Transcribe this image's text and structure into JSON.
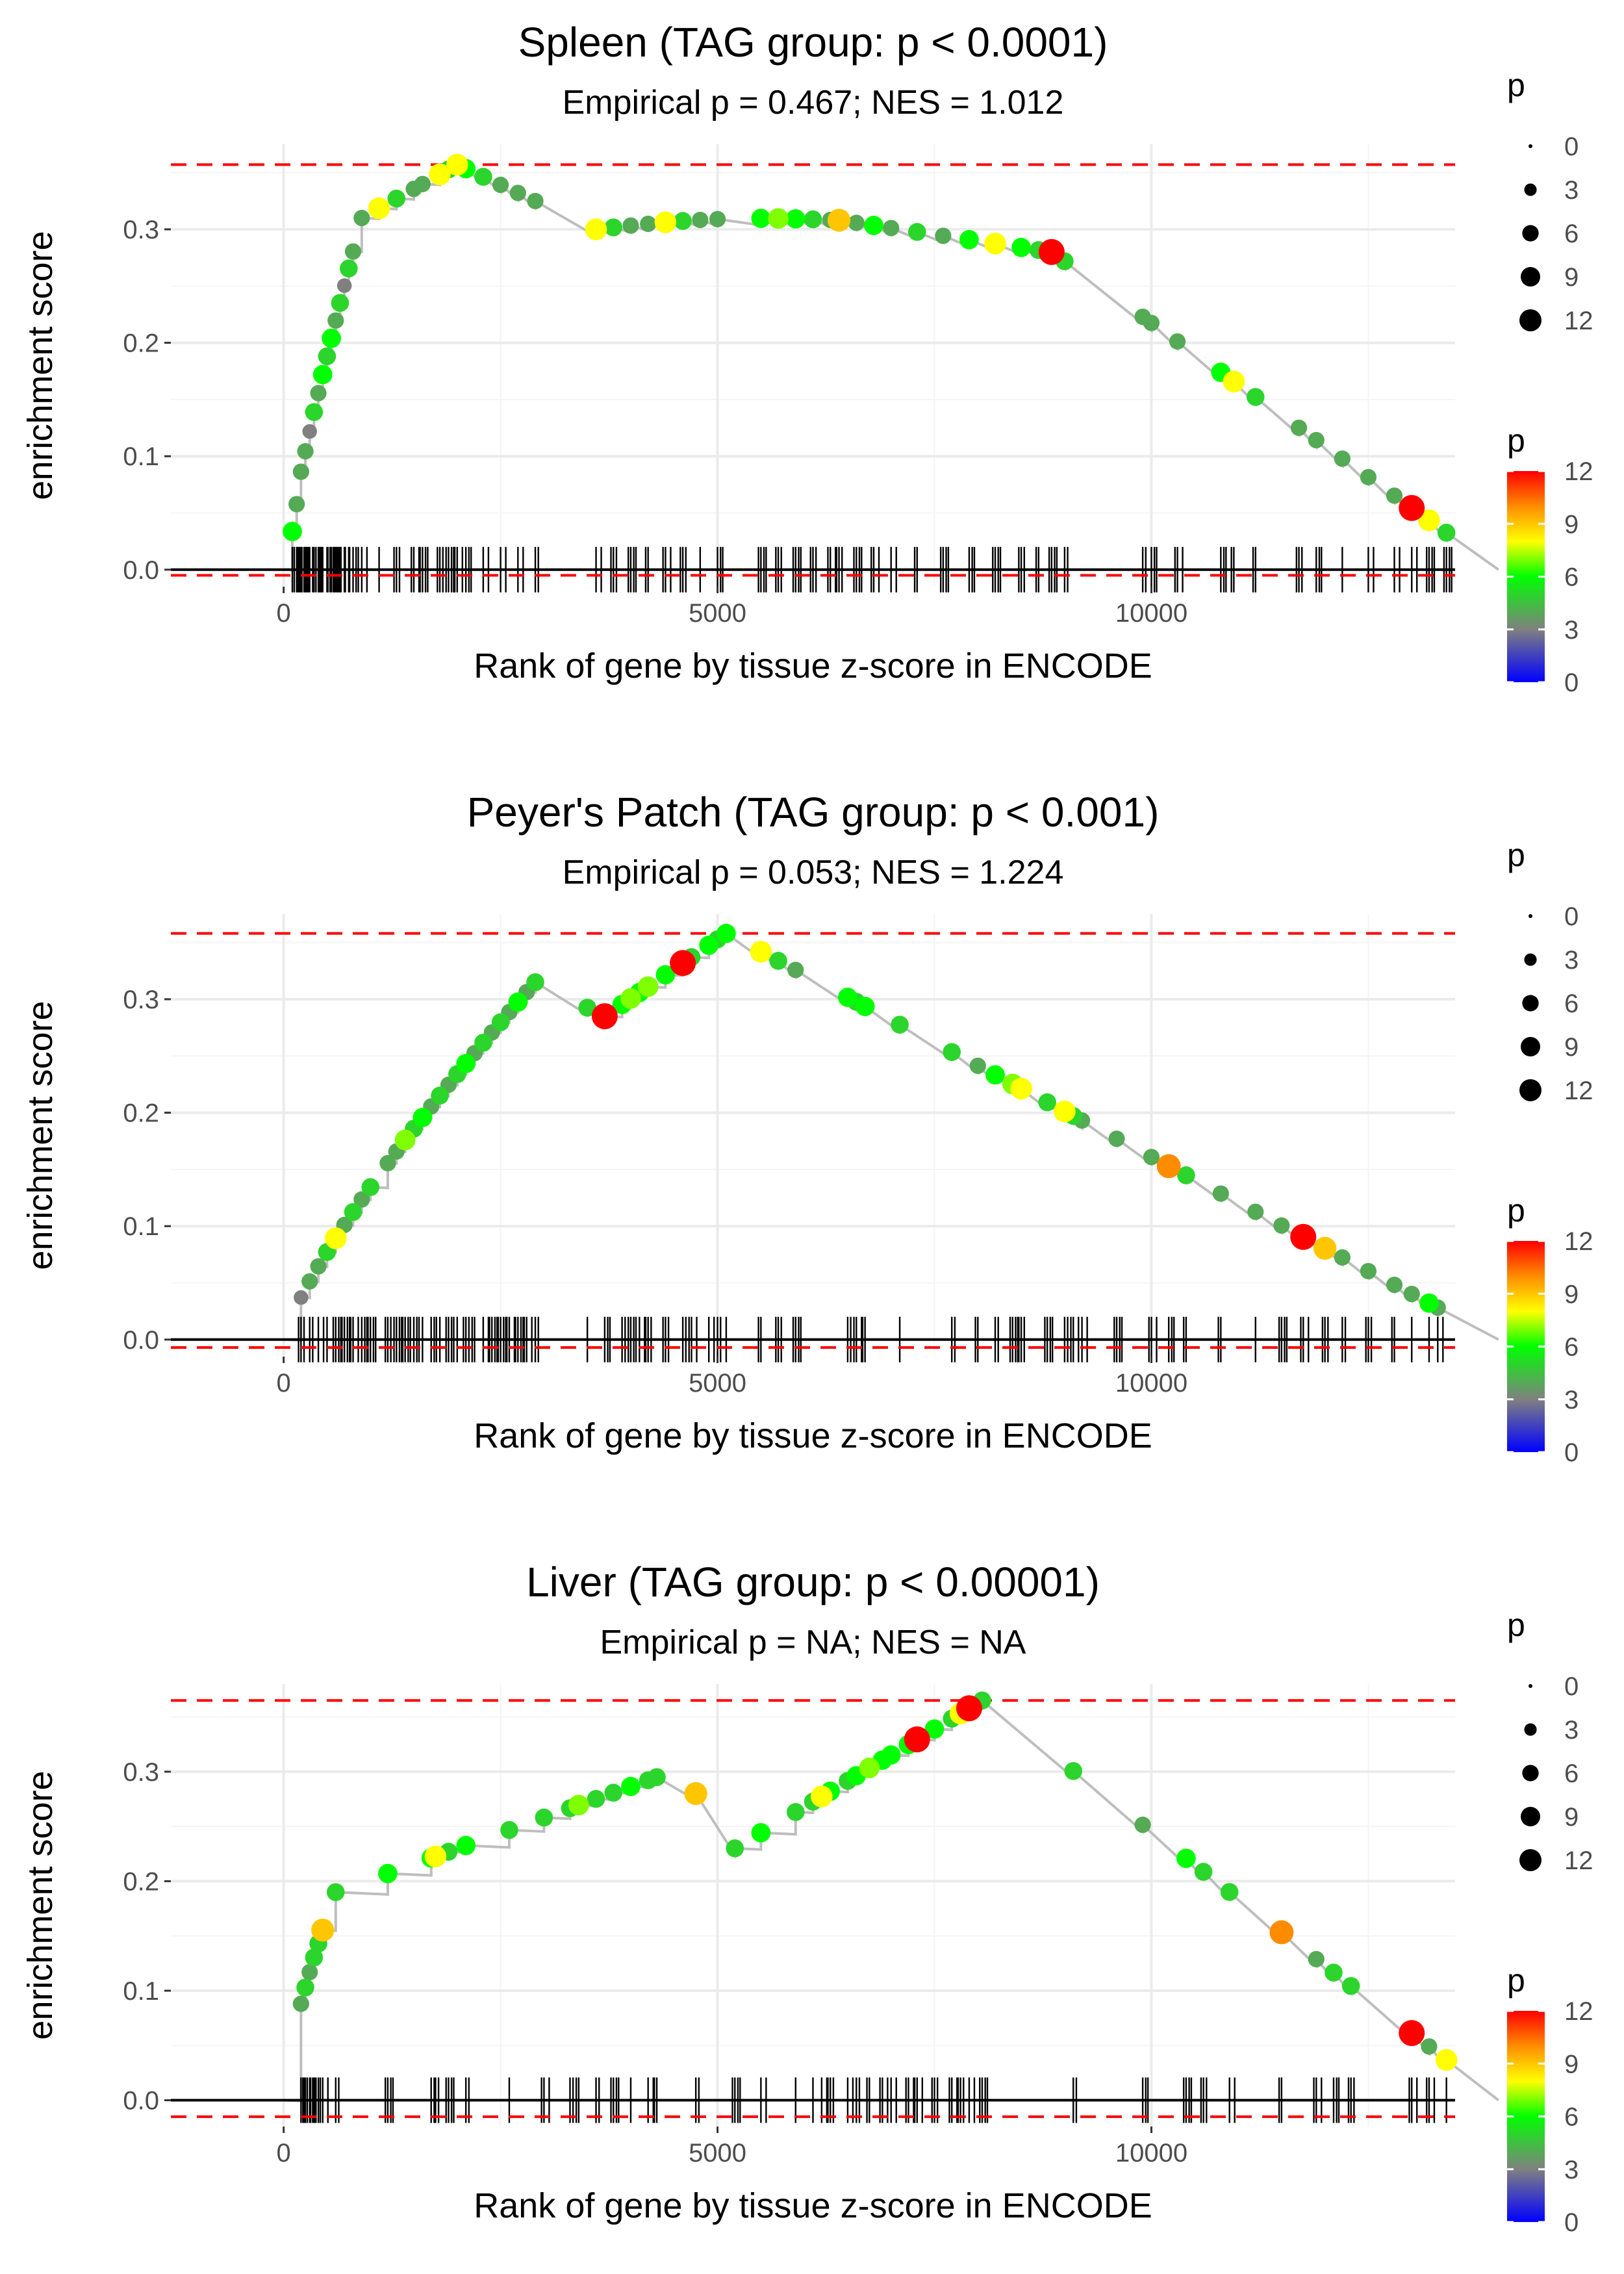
{
  "figure_colors": {
    "grid": "#ebebeb",
    "reference_line": "#ff0000",
    "running_line": "#bebebe",
    "baseline": "#000000",
    "rug": "#000000",
    "gradient_stops": [
      "#0000ff",
      "#808080",
      "#00ff00",
      "#ffff00",
      "#ff8c00",
      "#ff0000"
    ]
  },
  "chart_data": [
    {
      "type": "line",
      "title": "Spleen (TAG group: p < 0.0001)",
      "subtitle": "Empirical p = 0.467; NES = 1.012",
      "xlabel": "Rank of gene by tissue z-score in ENCODE",
      "ylabel": "enrichment score",
      "xlim": [
        -1300,
        13500
      ],
      "ylim": [
        -0.015,
        0.375
      ],
      "x_ticks": [
        0,
        5000,
        10000
      ],
      "x_tick_labels": [
        "0",
        "5000",
        "10000"
      ],
      "y_ticks": [
        0.0,
        0.1,
        0.2,
        0.3
      ],
      "y_tick_labels": [
        "0.0",
        "0.1",
        "0.2",
        "0.3"
      ],
      "max_es": 0.357,
      "min_es": -0.005,
      "n_genes": 14000,
      "legend_size": {
        "title": "p",
        "values": [
          0,
          3,
          6,
          9,
          12
        ],
        "labels": [
          "0",
          "3",
          "6",
          "9",
          "12"
        ]
      },
      "legend_color": {
        "title": "p",
        "range": [
          0,
          12
        ],
        "ticks": [
          0,
          3,
          6,
          9,
          12
        ],
        "labels": [
          "0",
          "3",
          "6",
          "9",
          "12"
        ]
      },
      "hits": [
        {
          "x": 100,
          "p": 6
        },
        {
          "x": 150,
          "p": 4
        },
        {
          "x": 200,
          "p": 4
        },
        {
          "x": 250,
          "p": 4
        },
        {
          "x": 300,
          "p": 3
        },
        {
          "x": 350,
          "p": 5
        },
        {
          "x": 400,
          "p": 4
        },
        {
          "x": 450,
          "p": 6
        },
        {
          "x": 500,
          "p": 5
        },
        {
          "x": 550,
          "p": 6
        },
        {
          "x": 600,
          "p": 4
        },
        {
          "x": 650,
          "p": 5
        },
        {
          "x": 700,
          "p": 3
        },
        {
          "x": 750,
          "p": 5
        },
        {
          "x": 800,
          "p": 4
        },
        {
          "x": 900,
          "p": 4
        },
        {
          "x": 1100,
          "p": 8
        },
        {
          "x": 1300,
          "p": 5
        },
        {
          "x": 1500,
          "p": 4
        },
        {
          "x": 1600,
          "p": 4
        },
        {
          "x": 1800,
          "p": 8
        },
        {
          "x": 1900,
          "p": 5
        },
        {
          "x": 2000,
          "p": 8
        },
        {
          "x": 2100,
          "p": 6
        },
        {
          "x": 2300,
          "p": 5
        },
        {
          "x": 2500,
          "p": 4
        },
        {
          "x": 2700,
          "p": 4
        },
        {
          "x": 2900,
          "p": 4
        },
        {
          "x": 3600,
          "p": 8
        },
        {
          "x": 3800,
          "p": 5
        },
        {
          "x": 4000,
          "p": 4
        },
        {
          "x": 4200,
          "p": 4
        },
        {
          "x": 4400,
          "p": 8
        },
        {
          "x": 4600,
          "p": 5
        },
        {
          "x": 4800,
          "p": 4
        },
        {
          "x": 5000,
          "p": 4
        },
        {
          "x": 5500,
          "p": 6
        },
        {
          "x": 5700,
          "p": 7
        },
        {
          "x": 5900,
          "p": 6
        },
        {
          "x": 6100,
          "p": 5
        },
        {
          "x": 6300,
          "p": 4
        },
        {
          "x": 6400,
          "p": 9
        },
        {
          "x": 6600,
          "p": 4
        },
        {
          "x": 6800,
          "p": 6
        },
        {
          "x": 7000,
          "p": 4
        },
        {
          "x": 7300,
          "p": 5
        },
        {
          "x": 7600,
          "p": 4
        },
        {
          "x": 7900,
          "p": 6
        },
        {
          "x": 8200,
          "p": 8
        },
        {
          "x": 8500,
          "p": 6
        },
        {
          "x": 8700,
          "p": 5
        },
        {
          "x": 8850,
          "p": 12
        },
        {
          "x": 9000,
          "p": 5
        },
        {
          "x": 9900,
          "p": 4
        },
        {
          "x": 10000,
          "p": 4
        },
        {
          "x": 10300,
          "p": 4
        },
        {
          "x": 10800,
          "p": 6
        },
        {
          "x": 10950,
          "p": 8
        },
        {
          "x": 11200,
          "p": 5
        },
        {
          "x": 11700,
          "p": 4
        },
        {
          "x": 11900,
          "p": 4
        },
        {
          "x": 12200,
          "p": 4
        },
        {
          "x": 12500,
          "p": 4
        },
        {
          "x": 12800,
          "p": 4
        },
        {
          "x": 13000,
          "p": 12
        },
        {
          "x": 13200,
          "p": 8
        },
        {
          "x": 13400,
          "p": 5
        }
      ]
    },
    {
      "type": "line",
      "title": "Peyer's Patch (TAG group: p < 0.001)",
      "subtitle": "Empirical p = 0.053; NES = 1.224",
      "xlabel": "Rank of gene by tissue z-score in ENCODE",
      "ylabel": "enrichment score",
      "xlim": [
        -1300,
        13500
      ],
      "ylim": [
        -0.015,
        0.375
      ],
      "x_ticks": [
        0,
        5000,
        10000
      ],
      "x_tick_labels": [
        "0",
        "5000",
        "10000"
      ],
      "y_ticks": [
        0.0,
        0.1,
        0.2,
        0.3
      ],
      "y_tick_labels": [
        "0.0",
        "0.1",
        "0.2",
        "0.3"
      ],
      "max_es": 0.358,
      "min_es": -0.007,
      "n_genes": 14000,
      "legend_size": {
        "title": "p",
        "values": [
          0,
          3,
          6,
          9,
          12
        ],
        "labels": [
          "0",
          "3",
          "6",
          "9",
          "12"
        ]
      },
      "legend_color": {
        "title": "p",
        "range": [
          0,
          12
        ],
        "ticks": [
          0,
          3,
          6,
          9,
          12
        ],
        "labels": [
          "0",
          "3",
          "6",
          "9",
          "12"
        ]
      },
      "hits": [
        {
          "x": 200,
          "p": 3
        },
        {
          "x": 300,
          "p": 4
        },
        {
          "x": 400,
          "p": 4
        },
        {
          "x": 500,
          "p": 5
        },
        {
          "x": 600,
          "p": 8
        },
        {
          "x": 700,
          "p": 4
        },
        {
          "x": 800,
          "p": 5
        },
        {
          "x": 900,
          "p": 4
        },
        {
          "x": 1000,
          "p": 5
        },
        {
          "x": 1200,
          "p": 4
        },
        {
          "x": 1300,
          "p": 4
        },
        {
          "x": 1400,
          "p": 7
        },
        {
          "x": 1500,
          "p": 5
        },
        {
          "x": 1600,
          "p": 6
        },
        {
          "x": 1700,
          "p": 4
        },
        {
          "x": 1800,
          "p": 5
        },
        {
          "x": 1900,
          "p": 4
        },
        {
          "x": 2000,
          "p": 5
        },
        {
          "x": 2100,
          "p": 6
        },
        {
          "x": 2200,
          "p": 4
        },
        {
          "x": 2300,
          "p": 5
        },
        {
          "x": 2400,
          "p": 4
        },
        {
          "x": 2500,
          "p": 5
        },
        {
          "x": 2600,
          "p": 4
        },
        {
          "x": 2700,
          "p": 6
        },
        {
          "x": 2800,
          "p": 4
        },
        {
          "x": 2900,
          "p": 5
        },
        {
          "x": 3500,
          "p": 5
        },
        {
          "x": 3700,
          "p": 12
        },
        {
          "x": 3900,
          "p": 6
        },
        {
          "x": 4000,
          "p": 7
        },
        {
          "x": 4100,
          "p": 6
        },
        {
          "x": 4200,
          "p": 7
        },
        {
          "x": 4400,
          "p": 6
        },
        {
          "x": 4600,
          "p": 12
        },
        {
          "x": 4700,
          "p": 5
        },
        {
          "x": 4900,
          "p": 6
        },
        {
          "x": 5000,
          "p": 5
        },
        {
          "x": 5100,
          "p": 6
        },
        {
          "x": 5500,
          "p": 8
        },
        {
          "x": 5700,
          "p": 5
        },
        {
          "x": 5900,
          "p": 4
        },
        {
          "x": 6500,
          "p": 6
        },
        {
          "x": 6600,
          "p": 5
        },
        {
          "x": 6700,
          "p": 6
        },
        {
          "x": 7100,
          "p": 5
        },
        {
          "x": 7700,
          "p": 5
        },
        {
          "x": 8000,
          "p": 4
        },
        {
          "x": 8200,
          "p": 6
        },
        {
          "x": 8400,
          "p": 7
        },
        {
          "x": 8500,
          "p": 8
        },
        {
          "x": 8800,
          "p": 5
        },
        {
          "x": 9000,
          "p": 8
        },
        {
          "x": 9100,
          "p": 5
        },
        {
          "x": 9200,
          "p": 4
        },
        {
          "x": 9600,
          "p": 4
        },
        {
          "x": 10000,
          "p": 4
        },
        {
          "x": 10200,
          "p": 10
        },
        {
          "x": 10400,
          "p": 5
        },
        {
          "x": 10800,
          "p": 4
        },
        {
          "x": 11200,
          "p": 4
        },
        {
          "x": 11500,
          "p": 4
        },
        {
          "x": 11750,
          "p": 12
        },
        {
          "x": 12000,
          "p": 9
        },
        {
          "x": 12200,
          "p": 4
        },
        {
          "x": 12500,
          "p": 4
        },
        {
          "x": 12800,
          "p": 4
        },
        {
          "x": 13000,
          "p": 4
        },
        {
          "x": 13200,
          "p": 6
        },
        {
          "x": 13300,
          "p": 4
        }
      ]
    },
    {
      "type": "line",
      "title": "Liver (TAG group: p < 0.00001)",
      "subtitle": "Empirical p = NA; NES = NA",
      "xlabel": "Rank of gene by tissue z-score in ENCODE",
      "ylabel": "enrichment score",
      "xlim": [
        -1300,
        13500
      ],
      "ylim": [
        -0.024,
        0.38
      ],
      "x_ticks": [
        0,
        5000,
        10000
      ],
      "x_tick_labels": [
        "0",
        "5000",
        "10000"
      ],
      "y_ticks": [
        0.0,
        0.1,
        0.2,
        0.3
      ],
      "y_tick_labels": [
        "0.0",
        "0.1",
        "0.2",
        "0.3"
      ],
      "max_es": 0.365,
      "min_es": -0.015,
      "n_genes": 14000,
      "legend_size": {
        "title": "p",
        "values": [
          0,
          3,
          6,
          9,
          12
        ],
        "labels": [
          "0",
          "3",
          "6",
          "9",
          "12"
        ]
      },
      "legend_color": {
        "title": "p",
        "range": [
          0,
          12
        ],
        "ticks": [
          0,
          3,
          6,
          9,
          12
        ],
        "labels": [
          "0",
          "3",
          "6",
          "9",
          "12"
        ]
      },
      "hits": [
        {
          "x": 200,
          "p": 4
        },
        {
          "x": 250,
          "p": 5
        },
        {
          "x": 300,
          "p": 4
        },
        {
          "x": 350,
          "p": 5
        },
        {
          "x": 400,
          "p": 5
        },
        {
          "x": 450,
          "p": 9
        },
        {
          "x": 600,
          "p": 5
        },
        {
          "x": 1200,
          "p": 6
        },
        {
          "x": 1700,
          "p": 6
        },
        {
          "x": 1750,
          "p": 8
        },
        {
          "x": 1900,
          "p": 5
        },
        {
          "x": 2100,
          "p": 6
        },
        {
          "x": 2600,
          "p": 5
        },
        {
          "x": 3000,
          "p": 5
        },
        {
          "x": 3300,
          "p": 5
        },
        {
          "x": 3400,
          "p": 7
        },
        {
          "x": 3600,
          "p": 5
        },
        {
          "x": 3800,
          "p": 5
        },
        {
          "x": 4000,
          "p": 6
        },
        {
          "x": 4200,
          "p": 5
        },
        {
          "x": 4300,
          "p": 5
        },
        {
          "x": 4750,
          "p": 9
        },
        {
          "x": 5200,
          "p": 5
        },
        {
          "x": 5500,
          "p": 6
        },
        {
          "x": 5900,
          "p": 5
        },
        {
          "x": 6100,
          "p": 5
        },
        {
          "x": 6200,
          "p": 8
        },
        {
          "x": 6300,
          "p": 6
        },
        {
          "x": 6500,
          "p": 5
        },
        {
          "x": 6600,
          "p": 6
        },
        {
          "x": 6750,
          "p": 7
        },
        {
          "x": 6900,
          "p": 6
        },
        {
          "x": 7000,
          "p": 6
        },
        {
          "x": 7200,
          "p": 6
        },
        {
          "x": 7300,
          "p": 12
        },
        {
          "x": 7500,
          "p": 6
        },
        {
          "x": 7700,
          "p": 5
        },
        {
          "x": 7800,
          "p": 8
        },
        {
          "x": 7900,
          "p": 12
        },
        {
          "x": 8050,
          "p": 5
        },
        {
          "x": 9100,
          "p": 5
        },
        {
          "x": 9900,
          "p": 4
        },
        {
          "x": 10400,
          "p": 6
        },
        {
          "x": 10600,
          "p": 5
        },
        {
          "x": 10900,
          "p": 5
        },
        {
          "x": 11500,
          "p": 10
        },
        {
          "x": 11900,
          "p": 4
        },
        {
          "x": 12100,
          "p": 5
        },
        {
          "x": 12300,
          "p": 5
        },
        {
          "x": 13000,
          "p": 12
        },
        {
          "x": 13200,
          "p": 4
        },
        {
          "x": 13400,
          "p": 8
        }
      ]
    }
  ]
}
